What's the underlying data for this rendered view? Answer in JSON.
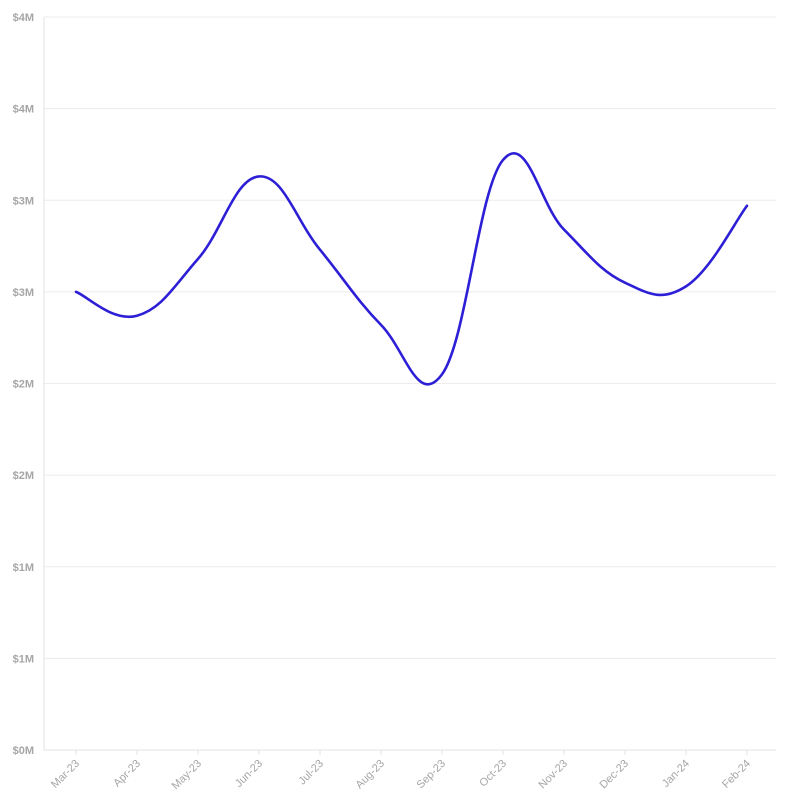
{
  "chart_data": {
    "type": "line",
    "title": "",
    "xlabel": "",
    "ylabel": "",
    "categories": [
      "Mar-23",
      "Apr-23",
      "May-23",
      "Jun-23",
      "Jul-23",
      "Aug-23",
      "Sep-23",
      "Oct-23",
      "Nov-23",
      "Dec-23",
      "Jan-24",
      "Feb-24"
    ],
    "y_tick_labels": [
      "$0M",
      "$1M",
      "$1M",
      "$2M",
      "$2M",
      "$3M",
      "$3M",
      "$4M",
      "$4M"
    ],
    "ylim": [
      0,
      4000000
    ],
    "grid": true,
    "line_color": "#2d1fd6",
    "series": [
      {
        "values": [
          2500000,
          2370000,
          2680000,
          3130000,
          2730000,
          2320000,
          2050000,
          3220000,
          2840000,
          2550000,
          2530000,
          2970000
        ]
      }
    ]
  }
}
